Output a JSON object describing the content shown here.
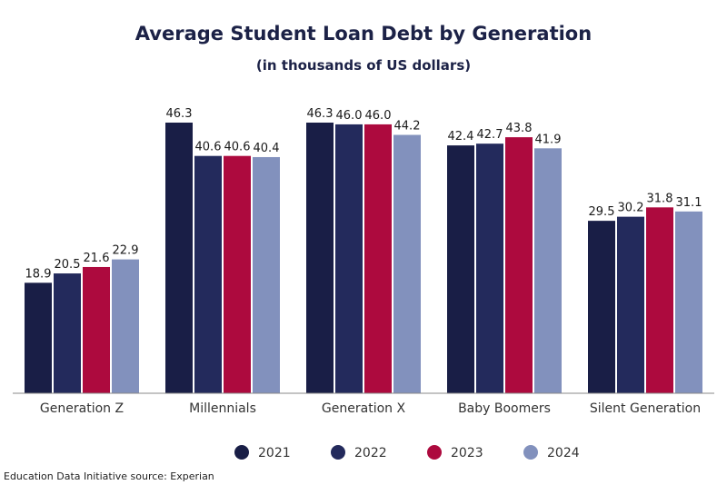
{
  "chart_data": {
    "type": "bar",
    "title": "Average Student Loan Debt by Generation",
    "subtitle": "(in thousands of US dollars)",
    "categories": [
      "Generation Z",
      "Millennials",
      "Generation X",
      "Baby Boomers",
      "Silent Generation"
    ],
    "series": [
      {
        "name": "2021",
        "color": "#191e46",
        "values": [
          18.9,
          46.3,
          46.3,
          42.4,
          29.5
        ]
      },
      {
        "name": "2022",
        "color": "#232a5c",
        "values": [
          20.5,
          40.6,
          46.0,
          42.7,
          30.2
        ]
      },
      {
        "name": "2023",
        "color": "#ad0a3e",
        "values": [
          21.6,
          40.6,
          46.0,
          43.8,
          31.8
        ]
      },
      {
        "name": "2024",
        "color": "#8291bd",
        "values": [
          22.9,
          40.4,
          44.2,
          41.9,
          31.1
        ]
      }
    ],
    "ylim": [
      0,
      46.3
    ],
    "grid": false,
    "legend_position": "bottom",
    "source": "Education Data Initiative source: Experian"
  }
}
